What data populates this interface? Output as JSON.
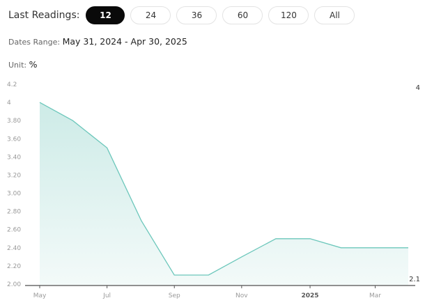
{
  "header": {
    "last_readings_label": "Last Readings:",
    "buttons": [
      {
        "label": "12",
        "active": true
      },
      {
        "label": "24",
        "active": false
      },
      {
        "label": "36",
        "active": false
      },
      {
        "label": "60",
        "active": false
      },
      {
        "label": "120",
        "active": false
      },
      {
        "label": "All",
        "active": false
      }
    ]
  },
  "dates_range": {
    "label": "Dates Range:",
    "value": "May 31, 2024 - Apr 30, 2025"
  },
  "unit": {
    "label": "Unit:",
    "value": "%"
  },
  "colors": {
    "line": "#6cc7bb",
    "fill_top": "#cdebe7",
    "fill_bottom": "#f3faf9"
  },
  "chart_data": {
    "type": "area",
    "x": [
      "2024-05-31",
      "2024-06-30",
      "2024-07-31",
      "2024-08-31",
      "2024-09-30",
      "2024-10-31",
      "2024-11-30",
      "2024-12-31",
      "2025-01-31",
      "2025-02-28",
      "2025-03-31",
      "2025-04-30"
    ],
    "values": [
      4.0,
      3.8,
      3.5,
      2.7,
      2.1,
      2.1,
      2.3,
      2.5,
      2.5,
      2.4,
      2.4,
      2.4
    ],
    "ylim": [
      2.0,
      4.2
    ],
    "y_ticks": [
      "2.00",
      "2.20",
      "2.40",
      "2.60",
      "2.80",
      "3.00",
      "3.20",
      "3.40",
      "3.60",
      "3.80",
      "4",
      "4.2"
    ],
    "x_ticks": [
      {
        "label": "May",
        "x": "2024-05-31"
      },
      {
        "label": "Jul",
        "x": "2024-07-31"
      },
      {
        "label": "Sep",
        "x": "2024-09-30"
      },
      {
        "label": "Nov",
        "x": "2024-11-30"
      },
      {
        "label": "2025",
        "x": "2025-01-31",
        "bold": true
      },
      {
        "label": "Mar",
        "x": "2025-03-31"
      }
    ],
    "max_label": "4",
    "min_label": "2.1",
    "grid": false
  }
}
